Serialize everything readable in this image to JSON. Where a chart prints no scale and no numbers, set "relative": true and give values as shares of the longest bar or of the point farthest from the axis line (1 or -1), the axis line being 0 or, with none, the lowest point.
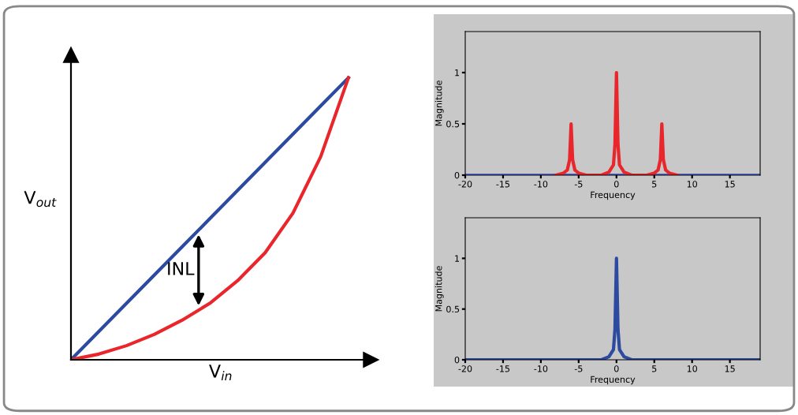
{
  "chart_data": [
    {
      "type": "line",
      "relative": true,
      "xlabel": "V$_{in}$",
      "ylabel": "V$_{out}$",
      "annotations": [
        "INL"
      ],
      "categories": [
        null,
        null,
        null,
        null,
        null,
        null,
        null,
        null,
        null,
        null,
        null
      ],
      "series": [
        {
          "color": "#2b4aa0",
          "values": [
            0,
            0.1,
            0.2,
            0.3,
            0.4,
            0.5,
            0.6,
            0.7,
            0.8,
            0.9,
            1
          ]
        },
        {
          "color": "#e8262b",
          "values": [
            0,
            0.02,
            0.05,
            0.09,
            0.14,
            0.2,
            0.28,
            0.38,
            0.52,
            0.72,
            1
          ]
        }
      ]
    },
    {
      "type": "line",
      "xlabel": "Frequency",
      "ylabel": "Magnitude",
      "xlim": [
        -20,
        19
      ],
      "ylim": [
        0,
        1.4
      ],
      "xticks": [
        -20,
        -15,
        -10,
        -5,
        0,
        5,
        10,
        15
      ],
      "yticks": [
        0,
        0.5,
        1
      ],
      "series": [
        {
          "color": "#5566cc",
          "x": [
            -20,
            19
          ],
          "values": [
            0,
            0
          ]
        },
        {
          "color": "#e8262b",
          "x": [
            -8,
            -7,
            -6.5,
            -6.2,
            -6,
            -5.8,
            -5.5,
            -5,
            -4,
            -2,
            -1,
            -0.4,
            -0.2,
            0,
            0.2,
            0.4,
            1,
            2,
            4,
            5,
            5.5,
            5.8,
            6,
            6.2,
            6.5,
            7,
            8
          ],
          "values": [
            0,
            0.02,
            0.05,
            0.15,
            0.5,
            0.15,
            0.05,
            0.02,
            0,
            0,
            0.03,
            0.1,
            0.3,
            1,
            0.3,
            0.1,
            0.03,
            0,
            0,
            0.02,
            0.05,
            0.15,
            0.5,
            0.15,
            0.05,
            0.02,
            0
          ]
        }
      ]
    },
    {
      "type": "line",
      "xlabel": "Frequency",
      "ylabel": "Magnitude",
      "xlim": [
        -20,
        19
      ],
      "ylim": [
        0,
        1.4
      ],
      "xticks": [
        -20,
        -15,
        -10,
        -5,
        0,
        5,
        10,
        15
      ],
      "yticks": [
        0,
        0.5,
        1
      ],
      "series": [
        {
          "color": "#2b4aa0",
          "x": [
            -20,
            -2,
            -1,
            -0.4,
            -0.2,
            0,
            0.2,
            0.4,
            1,
            2,
            19
          ],
          "values": [
            0,
            0,
            0.03,
            0.1,
            0.3,
            1,
            0.3,
            0.1,
            0.03,
            0,
            0
          ]
        }
      ]
    }
  ]
}
